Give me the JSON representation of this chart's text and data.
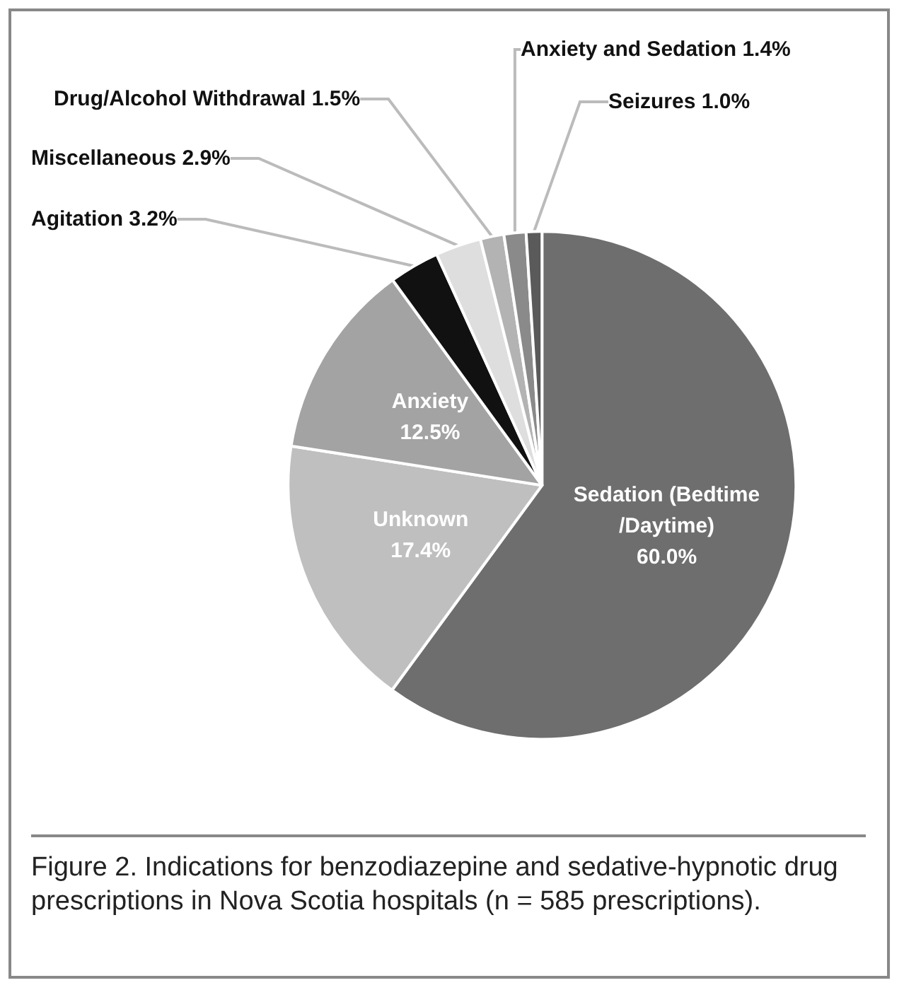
{
  "chart_data": {
    "type": "pie",
    "categories": [
      "Sedation (Bedtime/Daytime)",
      "Unknown",
      "Anxiety",
      "Agitation",
      "Miscellaneous",
      "Drug/Alcohol Withdrawal",
      "Anxiety and Sedation",
      "Seizures"
    ],
    "values": [
      60.0,
      17.4,
      12.5,
      3.2,
      2.9,
      1.5,
      1.4,
      1.0
    ],
    "value_labels": [
      "60.0%",
      "17.4%",
      "12.5%",
      "3.2%",
      "2.9%",
      "1.5%",
      "1.4%",
      "1.0%"
    ],
    "colors": [
      "#6e6e6e",
      "#bfbfbf",
      "#a3a3a3",
      "#111111",
      "#dedede",
      "#b3b3b3",
      "#8a8a8a",
      "#5a5a5a"
    ],
    "annotations": [
      "Figure 2. Indications for benzodiazepine and sedative-hypnotic drug prescriptions in Nova Scotia hospitals (n = 585 prescriptions)."
    ],
    "legend": false
  }
}
